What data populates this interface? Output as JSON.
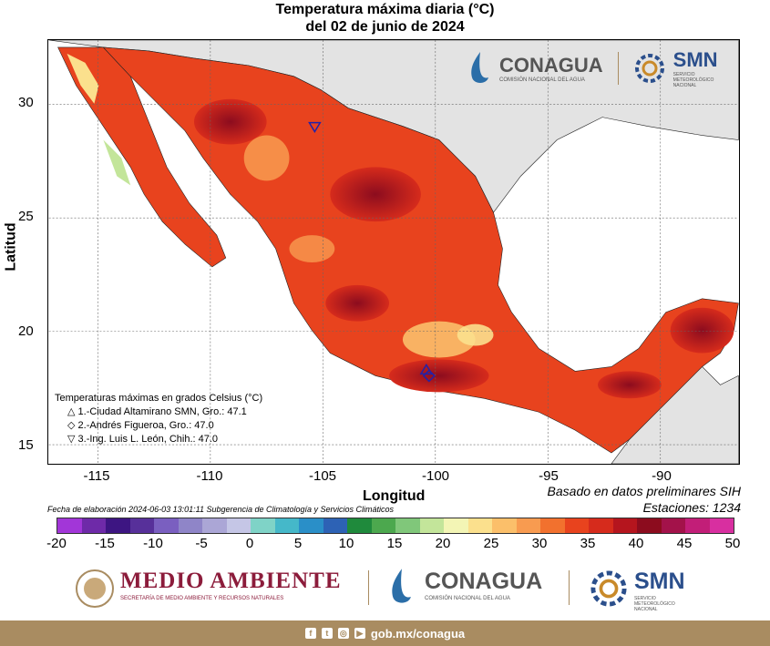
{
  "title": "Temperatura máxima diaria (°C)",
  "subtitle": "del 02 de junio de 2024",
  "xlabel": "Longitud",
  "ylabel": "Latitud",
  "x_ticks": [
    "-115",
    "-110",
    "-105",
    "-100",
    "-95",
    "-90"
  ],
  "y_ticks": [
    "30",
    "25",
    "20",
    "15"
  ],
  "notes": {
    "basado": "Basado en datos preliminares SIH",
    "estaciones": "Estaciones:  1234",
    "fecha": "Fecha de elaboración 2024-06-03 13:01:11 Subgerencia de Climatología y Servicios Climáticos"
  },
  "legend": {
    "heading": "Temperaturas máximas en grados Celsius (°C)",
    "items": [
      {
        "symbol": "△",
        "text": "1.-Ciudad Altamirano SMN, Gro.: 47.1"
      },
      {
        "symbol": "◇",
        "text": "2.-Andrés Figueroa, Gro.: 47.0"
      },
      {
        "symbol": "▽",
        "text": "3.-Ing. Luis L. León, Chih.: 47.0"
      }
    ]
  },
  "colorbar": {
    "labels": [
      "-20",
      "-15",
      "-10",
      "-5",
      "0",
      "5",
      "10",
      "15",
      "20",
      "25",
      "30",
      "35",
      "40",
      "45",
      "50"
    ],
    "colors": [
      "#a236d8",
      "#6e2aa8",
      "#3d1582",
      "#57309a",
      "#7a5fc0",
      "#8f85c8",
      "#aba6d6",
      "#c5c6e6",
      "#7fd3c7",
      "#45b8c9",
      "#2a8fc8",
      "#2d62b5",
      "#1f8a3c",
      "#4ca84e",
      "#80c77a",
      "#c3e59a",
      "#f3f5b5",
      "#fbe08d",
      "#fbbf6a",
      "#f89b50",
      "#f2712e",
      "#e8431e",
      "#d62b1c",
      "#b5151e",
      "#8c0c1e",
      "#a3124a",
      "#c21e78",
      "#d82fa0"
    ]
  },
  "logos": {
    "conagua": "CONAGUA",
    "conagua_sub": "COMISIÓN NACIONAL DEL AGUA",
    "smn": "SMN",
    "smn_sub": "SERVICIO METEOROLÓGICO NACIONAL",
    "medio_ambiente": "MEDIO AMBIENTE",
    "medio_sub": "SECRETARÍA DE MEDIO AMBIENTE Y RECURSOS NATURALES"
  },
  "footer": {
    "url": "gob.mx/conagua"
  },
  "colors": {
    "ocean": "#ffffff",
    "land_outside": "#e3e3e3",
    "footer": "#a98c61",
    "medio": "#8c1c3b",
    "conagua": "#555555"
  }
}
